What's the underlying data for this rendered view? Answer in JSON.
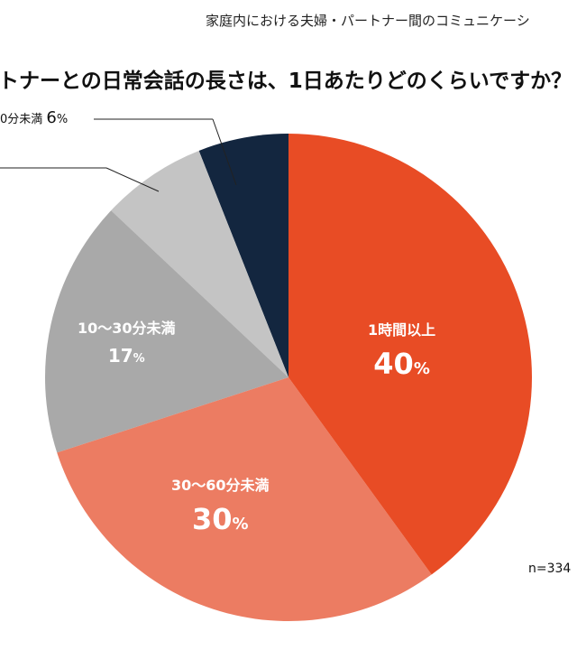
{
  "chart_data": {
    "type": "pie",
    "header": "家庭内における夫婦・パートナー間のコミュニケーシ",
    "title": "トナーとの日常会話の長さは、1日あたりどのくらいですか？",
    "sample_size": "n=334",
    "unit": "%",
    "slices": [
      {
        "label": "1時間以上",
        "value": 40,
        "color": "#e84c25"
      },
      {
        "label": "30～60分未満",
        "value": 30,
        "color": "#ec7c62"
      },
      {
        "label": "10～30分未満",
        "value": 17,
        "color": "#a9a9a9"
      },
      {
        "label": "",
        "value": 7,
        "color": "#c4c4c4"
      },
      {
        "label": "0分未満",
        "value": 6,
        "color": "#13263f"
      }
    ]
  }
}
